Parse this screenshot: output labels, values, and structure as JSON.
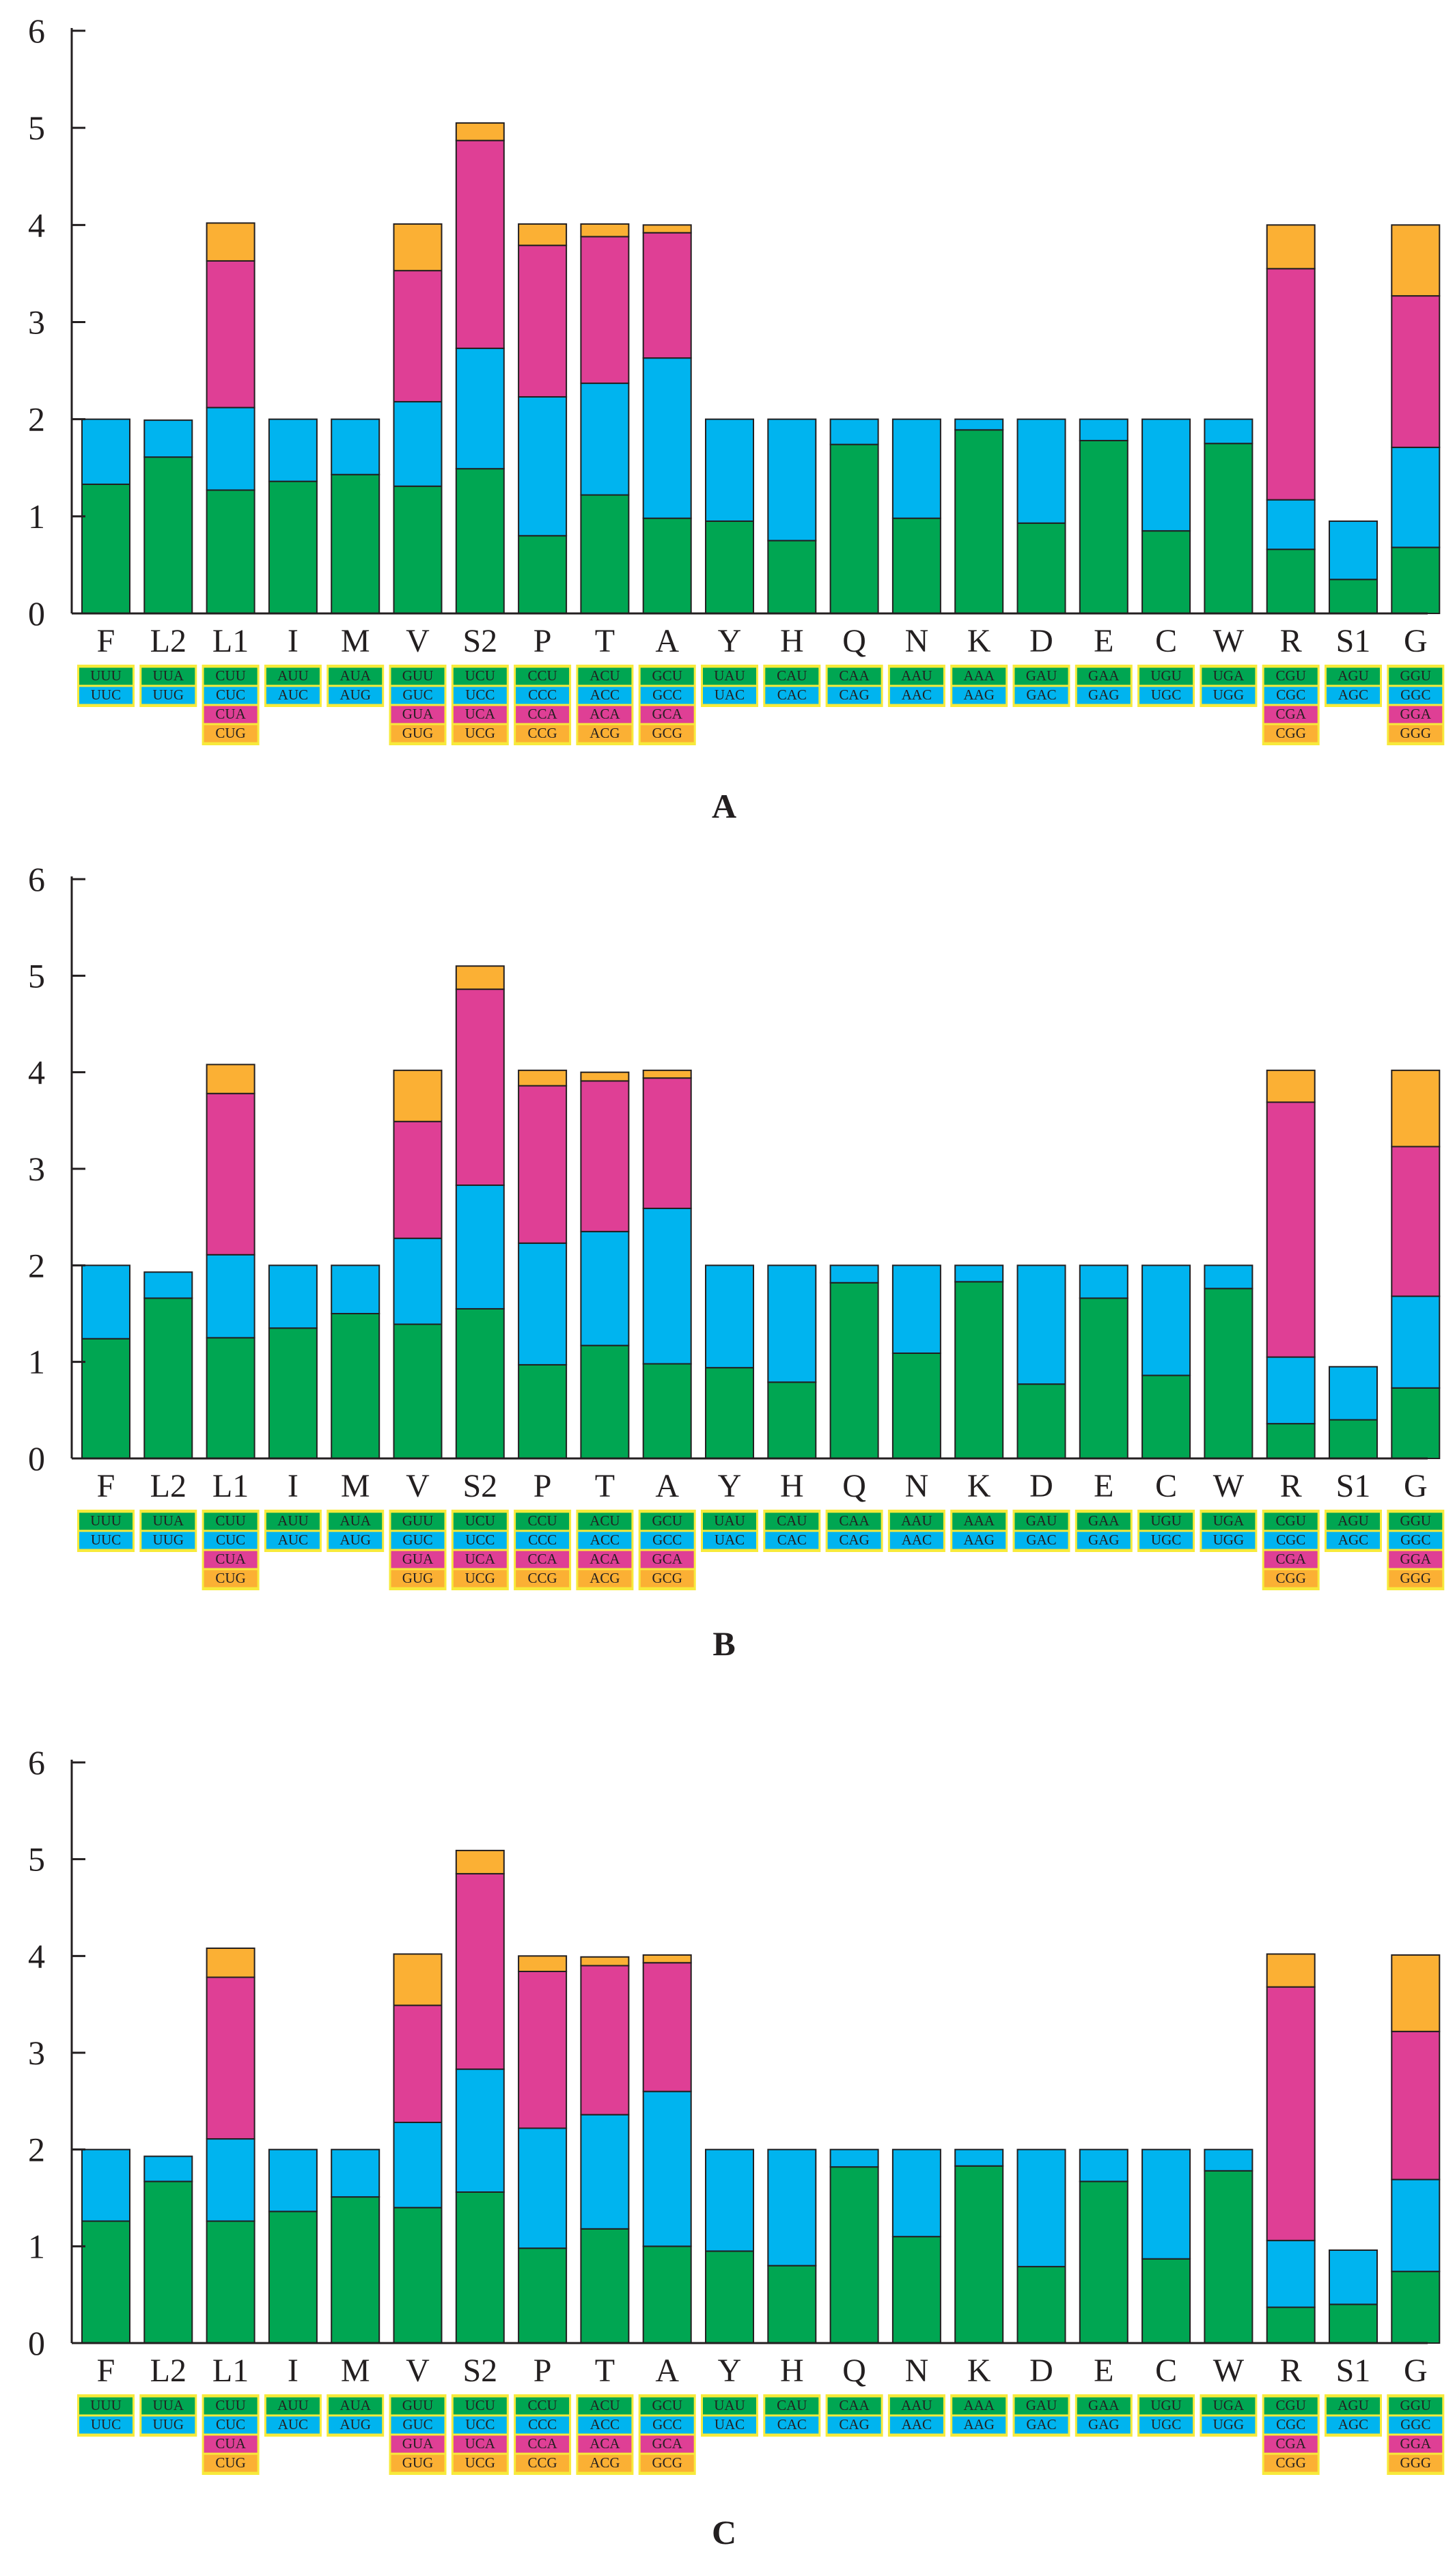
{
  "colors": {
    "green": "#00a652",
    "blue": "#00b4ef",
    "magenta": "#df3f95",
    "orange": "#fbb034",
    "box_border": "#f7ea3b",
    "axis": "#231f20"
  },
  "chart_data": [
    {
      "type": "bar",
      "stacked": true,
      "title": "",
      "panel_label": "A",
      "xlabel": "",
      "ylabel": "",
      "ylim": [
        0,
        6
      ],
      "yticks": [
        "0",
        "1",
        "2",
        "3",
        "4",
        "5",
        "6"
      ],
      "categories": [
        "F",
        "L2",
        "L1",
        "I",
        "M",
        "V",
        "S2",
        "P",
        "T",
        "A",
        "Y",
        "H",
        "Q",
        "N",
        "K",
        "D",
        "E",
        "C",
        "W",
        "R",
        "S1",
        "G"
      ],
      "codons": [
        [
          "UUU",
          "UUC"
        ],
        [
          "UUA",
          "UUG"
        ],
        [
          "CUU",
          "CUC",
          "CUA",
          "CUG"
        ],
        [
          "AUU",
          "AUC"
        ],
        [
          "AUA",
          "AUG"
        ],
        [
          "GUU",
          "GUC",
          "GUA",
          "GUG"
        ],
        [
          "UCU",
          "UCC",
          "UCA",
          "UCG"
        ],
        [
          "CCU",
          "CCC",
          "CCA",
          "CCG"
        ],
        [
          "ACU",
          "ACC",
          "ACA",
          "ACG"
        ],
        [
          "GCU",
          "GCC",
          "GCA",
          "GCG"
        ],
        [
          "UAU",
          "UAC"
        ],
        [
          "CAU",
          "CAC"
        ],
        [
          "CAA",
          "CAG"
        ],
        [
          "AAU",
          "AAC"
        ],
        [
          "AAA",
          "AAG"
        ],
        [
          "GAU",
          "GAC"
        ],
        [
          "GAA",
          "GAG"
        ],
        [
          "UGU",
          "UGC"
        ],
        [
          "UGA",
          "UGG"
        ],
        [
          "CGU",
          "CGC",
          "CGA",
          "CGG"
        ],
        [
          "AGU",
          "AGC"
        ],
        [
          "GGU",
          "GGC",
          "GGA",
          "GGG"
        ]
      ],
      "series": [
        {
          "name": "codon 1",
          "color": "green",
          "values": [
            1.33,
            1.61,
            1.27,
            1.36,
            1.43,
            1.31,
            1.49,
            0.8,
            1.22,
            0.98,
            0.95,
            0.75,
            1.74,
            0.98,
            1.89,
            0.93,
            1.78,
            0.85,
            1.75,
            0.66,
            0.35,
            0.68
          ]
        },
        {
          "name": "codon 2",
          "color": "blue",
          "values": [
            0.67,
            0.38,
            0.85,
            0.64,
            0.57,
            0.87,
            1.24,
            1.43,
            1.15,
            1.65,
            1.05,
            1.25,
            0.26,
            1.02,
            0.11,
            1.07,
            0.22,
            1.15,
            0.25,
            0.51,
            0.6,
            1.03
          ]
        },
        {
          "name": "codon 3",
          "color": "magenta",
          "values": [
            0,
            0,
            1.51,
            0,
            0,
            1.35,
            2.14,
            1.56,
            1.51,
            1.29,
            0,
            0,
            0,
            0,
            0,
            0,
            0,
            0,
            0,
            2.38,
            0,
            1.56
          ]
        },
        {
          "name": "codon 4",
          "color": "orange",
          "values": [
            0,
            0,
            0.39,
            0,
            0,
            0.48,
            0.18,
            0.22,
            0.13,
            0.08,
            0,
            0,
            0,
            0,
            0,
            0,
            0,
            0,
            0,
            0.45,
            0,
            0.73
          ]
        }
      ]
    },
    {
      "type": "bar",
      "stacked": true,
      "title": "",
      "panel_label": "B",
      "xlabel": "",
      "ylabel": "",
      "ylim": [
        0,
        6
      ],
      "yticks": [
        "0",
        "1",
        "2",
        "3",
        "4",
        "5",
        "6"
      ],
      "categories": [
        "F",
        "L2",
        "L1",
        "I",
        "M",
        "V",
        "S2",
        "P",
        "T",
        "A",
        "Y",
        "H",
        "Q",
        "N",
        "K",
        "D",
        "E",
        "C",
        "W",
        "R",
        "S1",
        "G"
      ],
      "codons": [
        [
          "UUU",
          "UUC"
        ],
        [
          "UUA",
          "UUG"
        ],
        [
          "CUU",
          "CUC",
          "CUA",
          "CUG"
        ],
        [
          "AUU",
          "AUC"
        ],
        [
          "AUA",
          "AUG"
        ],
        [
          "GUU",
          "GUC",
          "GUA",
          "GUG"
        ],
        [
          "UCU",
          "UCC",
          "UCA",
          "UCG"
        ],
        [
          "CCU",
          "CCC",
          "CCA",
          "CCG"
        ],
        [
          "ACU",
          "ACC",
          "ACA",
          "ACG"
        ],
        [
          "GCU",
          "GCC",
          "GCA",
          "GCG"
        ],
        [
          "UAU",
          "UAC"
        ],
        [
          "CAU",
          "CAC"
        ],
        [
          "CAA",
          "CAG"
        ],
        [
          "AAU",
          "AAC"
        ],
        [
          "AAA",
          "AAG"
        ],
        [
          "GAU",
          "GAC"
        ],
        [
          "GAA",
          "GAG"
        ],
        [
          "UGU",
          "UGC"
        ],
        [
          "UGA",
          "UGG"
        ],
        [
          "CGU",
          "CGC",
          "CGA",
          "CGG"
        ],
        [
          "AGU",
          "AGC"
        ],
        [
          "GGU",
          "GGC",
          "GGA",
          "GGG"
        ]
      ],
      "series": [
        {
          "name": "codon 1",
          "color": "green",
          "values": [
            1.24,
            1.66,
            1.25,
            1.35,
            1.5,
            1.39,
            1.55,
            0.97,
            1.17,
            0.98,
            0.94,
            0.79,
            1.82,
            1.09,
            1.83,
            0.77,
            1.66,
            0.86,
            1.76,
            0.36,
            0.4,
            0.73
          ]
        },
        {
          "name": "codon 2",
          "color": "blue",
          "values": [
            0.76,
            0.27,
            0.86,
            0.65,
            0.5,
            0.89,
            1.28,
            1.26,
            1.18,
            1.61,
            1.06,
            1.21,
            0.18,
            0.91,
            0.17,
            1.23,
            0.34,
            1.14,
            0.24,
            0.69,
            0.55,
            0.95
          ]
        },
        {
          "name": "codon 3",
          "color": "magenta",
          "values": [
            0,
            0,
            1.67,
            0,
            0,
            1.21,
            2.03,
            1.63,
            1.56,
            1.35,
            0,
            0,
            0,
            0,
            0,
            0,
            0,
            0,
            0,
            2.64,
            0,
            1.55
          ]
        },
        {
          "name": "codon 4",
          "color": "orange",
          "values": [
            0,
            0,
            0.3,
            0,
            0,
            0.53,
            0.24,
            0.16,
            0.09,
            0.08,
            0,
            0,
            0,
            0,
            0,
            0,
            0,
            0,
            0,
            0.33,
            0,
            0.79
          ]
        }
      ]
    },
    {
      "type": "bar",
      "stacked": true,
      "title": "",
      "panel_label": "C",
      "xlabel": "",
      "ylabel": "",
      "ylim": [
        0,
        6
      ],
      "yticks": [
        "0",
        "1",
        "2",
        "3",
        "4",
        "5",
        "6"
      ],
      "categories": [
        "F",
        "L2",
        "L1",
        "I",
        "M",
        "V",
        "S2",
        "P",
        "T",
        "A",
        "Y",
        "H",
        "Q",
        "N",
        "K",
        "D",
        "E",
        "C",
        "W",
        "R",
        "S1",
        "G"
      ],
      "codons": [
        [
          "UUU",
          "UUC"
        ],
        [
          "UUA",
          "UUG"
        ],
        [
          "CUU",
          "CUC",
          "CUA",
          "CUG"
        ],
        [
          "AUU",
          "AUC"
        ],
        [
          "AUA",
          "AUG"
        ],
        [
          "GUU",
          "GUC",
          "GUA",
          "GUG"
        ],
        [
          "UCU",
          "UCC",
          "UCA",
          "UCG"
        ],
        [
          "CCU",
          "CCC",
          "CCA",
          "CCG"
        ],
        [
          "ACU",
          "ACC",
          "ACA",
          "ACG"
        ],
        [
          "GCU",
          "GCC",
          "GCA",
          "GCG"
        ],
        [
          "UAU",
          "UAC"
        ],
        [
          "CAU",
          "CAC"
        ],
        [
          "CAA",
          "CAG"
        ],
        [
          "AAU",
          "AAC"
        ],
        [
          "AAA",
          "AAG"
        ],
        [
          "GAU",
          "GAC"
        ],
        [
          "GAA",
          "GAG"
        ],
        [
          "UGU",
          "UGC"
        ],
        [
          "UGA",
          "UGG"
        ],
        [
          "CGU",
          "CGC",
          "CGA",
          "CGG"
        ],
        [
          "AGU",
          "AGC"
        ],
        [
          "GGU",
          "GGC",
          "GGA",
          "GGG"
        ]
      ],
      "series": [
        {
          "name": "codon 1",
          "color": "green",
          "values": [
            1.26,
            1.67,
            1.26,
            1.36,
            1.51,
            1.4,
            1.56,
            0.98,
            1.18,
            1.0,
            0.95,
            0.8,
            1.82,
            1.1,
            1.83,
            0.79,
            1.67,
            0.87,
            1.78,
            0.37,
            0.4,
            0.74
          ]
        },
        {
          "name": "codon 2",
          "color": "blue",
          "values": [
            0.74,
            0.26,
            0.85,
            0.64,
            0.49,
            0.88,
            1.27,
            1.24,
            1.18,
            1.6,
            1.05,
            1.2,
            0.18,
            0.9,
            0.17,
            1.21,
            0.33,
            1.13,
            0.22,
            0.69,
            0.56,
            0.95
          ]
        },
        {
          "name": "codon 3",
          "color": "magenta",
          "values": [
            0,
            0,
            1.67,
            0,
            0,
            1.21,
            2.02,
            1.62,
            1.54,
            1.33,
            0,
            0,
            0,
            0,
            0,
            0,
            0,
            0,
            0,
            2.62,
            0,
            1.53
          ]
        },
        {
          "name": "codon 4",
          "color": "orange",
          "values": [
            0,
            0,
            0.3,
            0,
            0,
            0.53,
            0.24,
            0.16,
            0.09,
            0.08,
            0,
            0,
            0,
            0,
            0,
            0,
            0,
            0,
            0,
            0.34,
            0,
            0.79
          ]
        }
      ]
    }
  ]
}
